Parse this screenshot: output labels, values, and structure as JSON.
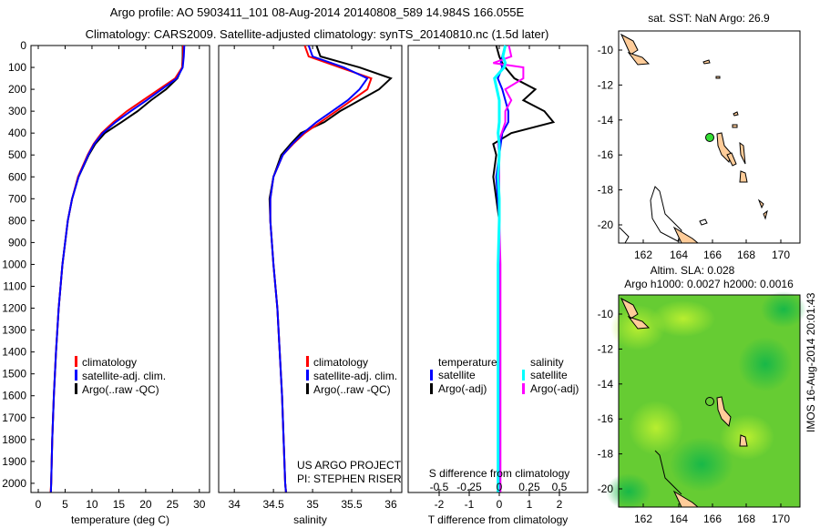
{
  "title_line1": "Argo profile: AO 5903411_101 08-Aug-2014 20140808_589 14.984S 166.055E",
  "title_line2": "Climatology: CARS2009. Satellite-adjusted climatology: synTS_20140810.nc (1.5d later)",
  "imos_stamp": "IMOS 16-Aug-2014 20:01:43",
  "colors": {
    "climatology": "#ff0000",
    "satellite": "#0000ff",
    "argo": "#000000",
    "sal_satellite": "#00ffff",
    "sal_argo": "#ff00ff",
    "land": "#ffcc99",
    "argo_marker": "#33dd33"
  },
  "chart_data": [
    {
      "type": "line",
      "name": "temperature",
      "xlabel": "temperature (deg C)",
      "xlim": [
        -1.36,
        31.9
      ],
      "ylim": [
        2042,
        0
      ],
      "xticks": [
        0,
        5,
        10,
        15,
        20,
        25,
        30
      ],
      "yticks": [
        0,
        100,
        200,
        300,
        400,
        500,
        600,
        700,
        800,
        900,
        1000,
        1100,
        1200,
        1300,
        1400,
        1500,
        1600,
        1700,
        1800,
        1900,
        2000
      ],
      "depth": [
        0,
        50,
        100,
        150,
        200,
        250,
        300,
        350,
        400,
        450,
        500,
        600,
        700,
        800,
        1000,
        1200,
        1400,
        1600,
        1800,
        2000,
        2040
      ],
      "series": [
        {
          "name": "climatology",
          "values": [
            27,
            27,
            26.8,
            25.5,
            22.5,
            19.5,
            16.5,
            14,
            11.8,
            10.3,
            9.2,
            7.4,
            6.3,
            5.5,
            4.5,
            3.8,
            3.3,
            2.9,
            2.6,
            2.4,
            2.3
          ]
        },
        {
          "name": "satellite-adj. clim.",
          "values": [
            27.2,
            27.1,
            26.9,
            25.8,
            23,
            20.2,
            17.2,
            14.4,
            12,
            10.4,
            9.3,
            7.5,
            6.3,
            5.5,
            4.5,
            3.8,
            3.3,
            2.9,
            2.6,
            2.4,
            2.35
          ]
        },
        {
          "name": "Argo(..raw -QC)",
          "values": [
            26.9,
            26.9,
            26.8,
            25.9,
            23.8,
            21,
            18.5,
            15.5,
            12.4,
            10.6,
            9.4,
            7.5,
            6.3,
            5.5,
            4.5,
            3.8,
            3.3,
            2.9,
            2.6,
            2.4,
            2.35
          ]
        }
      ],
      "legend": [
        "climatology",
        "satellite-adj. clim.",
        "Argo(..raw -QC)"
      ]
    },
    {
      "type": "line",
      "name": "salinity",
      "xlabel": "salinity",
      "xlim": [
        33.8,
        36.14
      ],
      "ylim": [
        2042,
        0
      ],
      "xticks": [
        34,
        34.5,
        35,
        35.5,
        36
      ],
      "depth": [
        0,
        50,
        100,
        150,
        200,
        250,
        300,
        350,
        400,
        450,
        500,
        600,
        700,
        800,
        1000,
        1200,
        1400,
        1600,
        1800,
        2000,
        2040
      ],
      "series": [
        {
          "name": "climatology",
          "values": [
            34.9,
            34.95,
            35.35,
            35.75,
            35.7,
            35.5,
            35.3,
            35.1,
            34.9,
            34.75,
            34.62,
            34.5,
            34.46,
            34.46,
            34.5,
            34.55,
            34.58,
            34.61,
            34.63,
            34.65,
            34.66
          ]
        },
        {
          "name": "satellite-adj. clim.",
          "values": [
            34.95,
            35.0,
            35.4,
            35.7,
            35.6,
            35.45,
            35.25,
            35.05,
            34.88,
            34.74,
            34.62,
            34.5,
            34.46,
            34.46,
            34.5,
            34.55,
            34.58,
            34.61,
            34.63,
            34.65,
            34.66
          ]
        },
        {
          "name": "Argo(..raw -QC)",
          "values": [
            35.05,
            35.1,
            35.6,
            36.0,
            35.85,
            35.6,
            35.35,
            35.15,
            34.85,
            34.72,
            34.6,
            34.5,
            34.45,
            34.46,
            34.5,
            34.55,
            34.58,
            34.61,
            34.63,
            34.65,
            34.66
          ]
        }
      ],
      "legend": [
        "climatology",
        "satellite-adj. clim.",
        "Argo(..raw -QC)"
      ],
      "annotation": [
        "US ARGO PROJECT",
        "PI: STEPHEN RISER"
      ]
    },
    {
      "type": "line",
      "name": "difference",
      "xlabel": "T difference from climatology",
      "x2label": "S difference from climatology",
      "xlim": [
        -3.03,
        2.94
      ],
      "xticks": [
        -2,
        -1,
        0,
        1,
        2
      ],
      "x2ticks": [
        -0.5,
        -0.25,
        0,
        0.25,
        0.5
      ],
      "x2tick_labels": [
        "-0.5",
        "-0.25",
        "0",
        "0.25",
        "0.5"
      ],
      "ylim": [
        2042,
        0
      ],
      "depth": [
        0,
        50,
        80,
        100,
        150,
        200,
        250,
        300,
        350,
        400,
        450,
        500,
        600,
        700,
        800,
        1000,
        1200,
        1400,
        1600,
        1800,
        2000,
        2040
      ],
      "series": [
        {
          "name": "T satellite",
          "values": [
            0.2,
            0.1,
            0.05,
            0.1,
            -0.05,
            0.1,
            0.2,
            0.3,
            0.3,
            0.1,
            0.05,
            0,
            -0.1,
            -0.05,
            0,
            0,
            0,
            0,
            0,
            0,
            0,
            0
          ]
        },
        {
          "name": "T Argo(-adj)",
          "values": [
            -0.1,
            0,
            0.1,
            0.2,
            0.5,
            1.2,
            0.8,
            1.5,
            1.8,
            0.4,
            -0.2,
            -0.1,
            -0.2,
            -0.1,
            0,
            0,
            0,
            0,
            0,
            0,
            0,
            0.03
          ]
        },
        {
          "name": "S satellite",
          "values": [
            0.05,
            0.03,
            0.05,
            0.04,
            -0.04,
            -0.02,
            0,
            0,
            0,
            -0.01,
            0,
            0,
            -0.01,
            0,
            0,
            -0.01,
            -0.01,
            -0.01,
            -0.01,
            -0.01,
            -0.01,
            -0.01
          ]
        },
        {
          "name": "S Argo(-adj)",
          "values": [
            0.08,
            0.1,
            -0.05,
            0.2,
            0.2,
            0.05,
            0.1,
            0.05,
            0.05,
            0.02,
            -0.01,
            0,
            0,
            0,
            0,
            0.01,
            0.01,
            0.01,
            0.01,
            0.01,
            0.01,
            0.01
          ]
        }
      ],
      "legend": {
        "temperature": "temperature",
        "salinity": "salinity",
        "items": [
          "satellite",
          "Argo(-adj)",
          "satellite",
          "Argo(-adj)"
        ]
      }
    }
  ],
  "maps": [
    {
      "title": "sat. SST: NaN Argo: 26.9",
      "lon_ticks": [
        "162",
        "164",
        "166",
        "168",
        "170"
      ],
      "lat_ticks": [
        "-10",
        "-12",
        "-14",
        "-16",
        "-18",
        "-20"
      ]
    },
    {
      "title1": "Altim. SLA: 0.028",
      "title2": "Argo h1000: 0.0027 h2000: 0.0016",
      "lon_ticks": [
        "162",
        "164",
        "166",
        "168",
        "170"
      ],
      "lat_ticks": [
        "-10",
        "-12",
        "-14",
        "-16",
        "-18",
        "-20"
      ]
    }
  ]
}
